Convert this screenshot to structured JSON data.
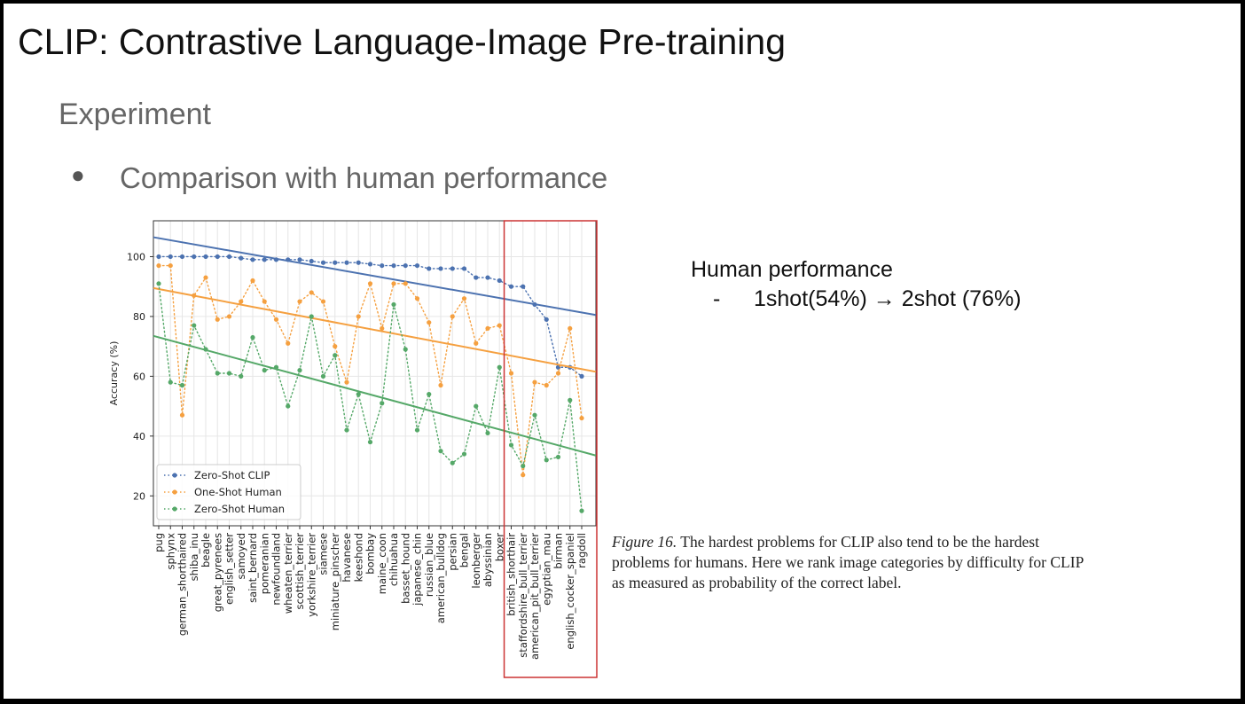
{
  "slide": {
    "title": "CLIP: Contrastive Language-Image Pre-training",
    "subtitle": "Experiment",
    "bullet": "Comparison with human performance",
    "human_title": "Human performance",
    "human_item": "1shot(54%) → 2shot (76%)",
    "caption_label": "Figure 16.",
    "caption_text": "The hardest problems for CLIP also tend to be the hardest problems for humans. Here we rank image categories by difficulty for CLIP as measured as probability of the correct label."
  },
  "chart_data": {
    "type": "line",
    "ylabel": "Accuracy (%)",
    "xlabel": "",
    "ylim": [
      10,
      112
    ],
    "yticks": [
      20,
      40,
      60,
      80,
      100
    ],
    "grid": true,
    "legend_placement": "lower-left",
    "highlight_box": {
      "from": "british_shorthair",
      "to": "ragdoll",
      "color": "#cc3333"
    },
    "categories": [
      "pug",
      "sphynx",
      "german_shorthaired",
      "shiba_inu",
      "beagle",
      "great_pyrenees",
      "english_setter",
      "samoyed",
      "saint_bernard",
      "pomeranian",
      "newfoundland",
      "wheaten_terrier",
      "scottish_terrier",
      "yorkshire_terrier",
      "siamese",
      "miniature_pinscher",
      "havanese",
      "keeshond",
      "bombay",
      "maine_coon",
      "chihuahua",
      "basset_hound",
      "japanese_chin",
      "russian_blue",
      "american_bulldog",
      "persian",
      "bengal",
      "leonberger",
      "abyssinian",
      "boxer",
      "british_shorthair",
      "staffordshire_bull_terrier",
      "american_pit_bull_terrier",
      "egyptian_mau",
      "birman",
      "english_cocker_spaniel",
      "ragdoll"
    ],
    "series": [
      {
        "name": "Zero-Shot CLIP",
        "color": "#4c72b0",
        "values": [
          100,
          100,
          100,
          100,
          100,
          100,
          100,
          99.5,
          99,
          99,
          99,
          99,
          99,
          98.5,
          98,
          98,
          98,
          98,
          97.5,
          97,
          97,
          97,
          97,
          96,
          96,
          96,
          96,
          93,
          93,
          92,
          90,
          90,
          84,
          79,
          63,
          63,
          60
        ],
        "trend": [
          106.5,
          80.5
        ]
      },
      {
        "name": "One-Shot Human",
        "color": "#f5a040",
        "values": [
          97,
          97,
          47,
          87,
          93,
          79,
          80,
          85,
          92,
          85,
          79,
          71,
          85,
          88,
          85,
          70,
          58,
          80,
          91,
          76,
          91,
          91,
          86,
          78,
          57,
          80,
          86,
          71,
          76,
          77,
          61,
          27,
          58,
          57,
          61,
          76,
          46
        ],
        "trend": [
          89.5,
          61.5
        ]
      },
      {
        "name": "Zero-Shot Human",
        "color": "#55a868",
        "values": [
          91,
          58,
          57,
          77,
          69,
          61,
          61,
          60,
          73,
          62,
          63,
          50,
          62,
          80,
          60,
          67,
          42,
          54,
          38,
          51,
          84,
          69,
          42,
          54,
          35,
          31,
          34,
          50,
          41,
          63,
          37,
          30,
          47,
          32,
          33,
          52,
          15
        ],
        "trend": [
          73.5,
          33.5
        ]
      }
    ]
  }
}
